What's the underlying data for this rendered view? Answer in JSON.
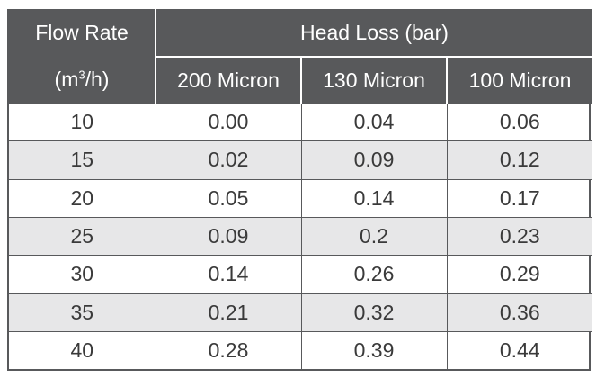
{
  "header": {
    "flow_rate_label": "Flow Rate",
    "head_loss_label": "Head Loss (bar)",
    "unit_prefix": "(m",
    "unit_exponent": "3",
    "unit_suffix": "/h)",
    "columns": [
      "200 Micron",
      "130 Micron",
      "100 Micron"
    ]
  },
  "rows": [
    [
      "10",
      "0.00",
      "0.04",
      "0.06"
    ],
    [
      "15",
      "0.02",
      "0.09",
      "0.12"
    ],
    [
      "20",
      "0.05",
      "0.14",
      "0.17"
    ],
    [
      "25",
      "0.09",
      "0.2",
      "0.23"
    ],
    [
      "30",
      "0.14",
      "0.26",
      "0.29"
    ],
    [
      "35",
      "0.21",
      "0.32",
      "0.36"
    ],
    [
      "40",
      "0.28",
      "0.39",
      "0.44"
    ]
  ],
  "colors": {
    "header_bg": "#58595b",
    "header_text": "#ffffff",
    "alt_row_bg": "#e7e7e8",
    "body_text": "#3a3a3a"
  }
}
